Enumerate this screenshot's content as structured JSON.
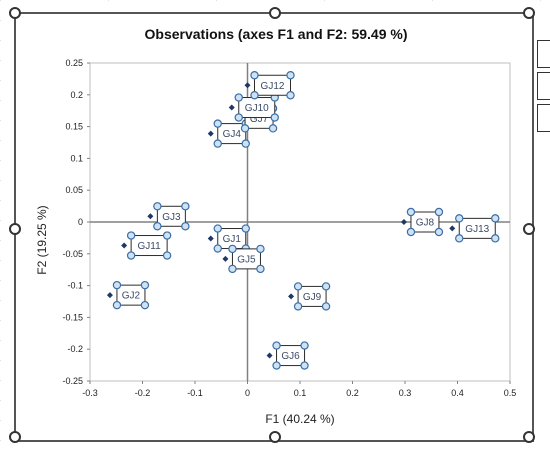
{
  "chart_data": {
    "type": "scatter",
    "title": "Observations (axes F1 and F2: 59.49 %)",
    "xlabel": "F1 (40.24 %)",
    "ylabel": "F2 (19.25 %)",
    "xlim": [
      -0.3,
      0.5
    ],
    "ylim": [
      -0.25,
      0.25
    ],
    "x_ticks": [
      "-0.3",
      "-0.2",
      "-0.1",
      "0",
      "0.1",
      "0.2",
      "0.3",
      "0.4",
      "0.5"
    ],
    "y_ticks": [
      "0.25",
      "0.2",
      "0.15",
      "0.1",
      "0.05",
      "0",
      "-0.05",
      "-0.1",
      "-0.15",
      "-0.2",
      "-0.25"
    ],
    "points": [
      {
        "label": "GJ1",
        "x": -0.07,
        "y": -0.026
      },
      {
        "label": "GJ2",
        "x": -0.262,
        "y": -0.115
      },
      {
        "label": "GJ3",
        "x": -0.185,
        "y": 0.009
      },
      {
        "label": "GJ4",
        "x": -0.07,
        "y": 0.139
      },
      {
        "label": "GJ5",
        "x": -0.042,
        "y": -0.058
      },
      {
        "label": "GJ6",
        "x": 0.042,
        "y": -0.21
      },
      {
        "label": "GJ7",
        "x": -0.018,
        "y": 0.163
      },
      {
        "label": "GJ8",
        "x": 0.298,
        "y": 0.0
      },
      {
        "label": "GJ9",
        "x": 0.083,
        "y": -0.117
      },
      {
        "label": "GJ10",
        "x": -0.03,
        "y": 0.18
      },
      {
        "label": "GJ11",
        "x": -0.235,
        "y": -0.037
      },
      {
        "label": "GJ12",
        "x": 0.0,
        "y": 0.215
      },
      {
        "label": "GJ13",
        "x": 0.39,
        "y": -0.01
      }
    ],
    "marker_color": "#1f3864",
    "axis_color": "#808080",
    "grid": false,
    "legend": "none"
  }
}
